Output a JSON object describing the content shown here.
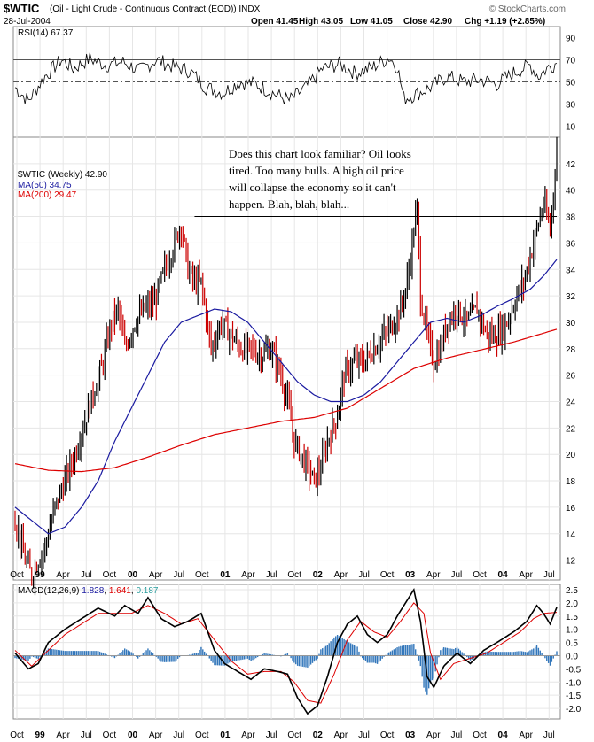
{
  "header": {
    "symbol": "$WTIC",
    "description": "(Oil - Light Crude - Continuous Contract (EOD)) INDX",
    "date": "28-Jul-2004",
    "open": "Open 41.45",
    "high": "High 43.05",
    "low": "Low 41.05",
    "close": "Close 42.90",
    "chg": "Chg +1.19 (+2.85%)",
    "watermark": "© StockCharts.com"
  },
  "annotation": [
    "Does this chart look familiar? Oil looks",
    "tired. Too many bulls. A high oil price",
    "will collapse the economy so it can't",
    "happen. Blah, blah, blah..."
  ],
  "colors": {
    "price_up": "#000000",
    "price_down": "#cc0000",
    "ma50": "#1a1aa0",
    "ma200": "#dd0000",
    "macd_signal": "#dd0000",
    "histogram": "#3377bb",
    "rsi_line": "#000000",
    "macd_value": "#1a1aa0",
    "signal_value": "#dd0000",
    "hist_value": "#2a9d9d"
  },
  "chart_data": [
    {
      "type": "line",
      "panel": "rsi",
      "legend": "RSI(14) 67.37",
      "yticks": [
        "90",
        "70",
        "50",
        "30",
        "10"
      ],
      "ylim": [
        0,
        100
      ],
      "levels": [
        70,
        50,
        30
      ],
      "series": [
        {
          "name": "RSI(14)",
          "keypoints": [
            [
              0,
              45
            ],
            [
              8,
              33
            ],
            [
              18,
              55
            ],
            [
              28,
              70
            ],
            [
              35,
              62
            ],
            [
              45,
              71
            ],
            [
              55,
              65
            ],
            [
              65,
              68
            ],
            [
              75,
              60
            ],
            [
              85,
              70
            ],
            [
              95,
              64
            ],
            [
              105,
              60
            ],
            [
              115,
              45
            ],
            [
              125,
              40
            ],
            [
              135,
              50
            ],
            [
              145,
              48
            ],
            [
              155,
              40
            ],
            [
              165,
              33
            ],
            [
              175,
              45
            ],
            [
              185,
              62
            ],
            [
              195,
              66
            ],
            [
              205,
              58
            ],
            [
              215,
              63
            ],
            [
              225,
              72
            ],
            [
              230,
              64
            ],
            [
              234,
              35
            ],
            [
              240,
              38
            ],
            [
              250,
              45
            ],
            [
              260,
              55
            ],
            [
              270,
              50
            ],
            [
              280,
              52
            ],
            [
              290,
              48
            ],
            [
              300,
              58
            ],
            [
              310,
              65
            ],
            [
              315,
              55
            ],
            [
              320,
              62
            ],
            [
              326,
              67.37
            ]
          ]
        }
      ]
    },
    {
      "type": "line",
      "panel": "price",
      "title": "$WTIC (Weekly) 42.90",
      "frequency": "Weekly",
      "x_labels": [
        "Oct",
        "99",
        "Apr",
        "Jul",
        "Oct",
        "00",
        "Apr",
        "Jul",
        "Oct",
        "01",
        "Apr",
        "Jul",
        "Oct",
        "02",
        "Apr",
        "Jul",
        "Oct",
        "03",
        "Apr",
        "Jul",
        "Oct",
        "04",
        "Apr",
        "Jul"
      ],
      "yticks": [
        "42",
        "40",
        "38",
        "36",
        "34",
        "32",
        "30",
        "28",
        "26",
        "24",
        "22",
        "20",
        "18",
        "16",
        "14",
        "12"
      ],
      "ylim": [
        10.5,
        44
      ],
      "resistance": 38,
      "series": [
        {
          "name": "$WTIC",
          "last": "42.90",
          "keypoints": [
            [
              0,
              15
            ],
            [
              6,
              12
            ],
            [
              10,
              10.8
            ],
            [
              14,
              12
            ],
            [
              18,
              13
            ],
            [
              24,
              16
            ],
            [
              30,
              18
            ],
            [
              36,
              20
            ],
            [
              42,
              22.5
            ],
            [
              48,
              25
            ],
            [
              52,
              26.5
            ],
            [
              58,
              30
            ],
            [
              62,
              31
            ],
            [
              66,
              28
            ],
            [
              72,
              30
            ],
            [
              78,
              31
            ],
            [
              84,
              31.5
            ],
            [
              90,
              34
            ],
            [
              96,
              36
            ],
            [
              100,
              37.5
            ],
            [
              104,
              34
            ],
            [
              108,
              33
            ],
            [
              112,
              33
            ],
            [
              118,
              28
            ],
            [
              124,
              30
            ],
            [
              130,
              29
            ],
            [
              136,
              28
            ],
            [
              142,
              28
            ],
            [
              148,
              27.5
            ],
            [
              154,
              28
            ],
            [
              160,
              26
            ],
            [
              164,
              24
            ],
            [
              168,
              21
            ],
            [
              172,
              20
            ],
            [
              176,
              19
            ],
            [
              180,
              18
            ],
            [
              184,
              19
            ],
            [
              188,
              21
            ],
            [
              194,
              23
            ],
            [
              198,
              26
            ],
            [
              204,
              27
            ],
            [
              210,
              27
            ],
            [
              216,
              28
            ],
            [
              222,
              29
            ],
            [
              228,
              30
            ],
            [
              232,
              31
            ],
            [
              236,
              33
            ],
            [
              240,
              37
            ],
            [
              242,
              38.5
            ],
            [
              244,
              32
            ],
            [
              248,
              29
            ],
            [
              252,
              27
            ],
            [
              256,
              28
            ],
            [
              260,
              30
            ],
            [
              266,
              31
            ],
            [
              272,
              30
            ],
            [
              278,
              31
            ],
            [
              284,
              29
            ],
            [
              290,
              29
            ],
            [
              296,
              30
            ],
            [
              302,
              32
            ],
            [
              306,
              33
            ],
            [
              310,
              35
            ],
            [
              314,
              37
            ],
            [
              318,
              39
            ],
            [
              322,
              37
            ],
            [
              326,
              42.9
            ]
          ]
        },
        {
          "name": "MA(50)",
          "legend": "MA(50) 34.75",
          "keypoints": [
            [
              0,
              16
            ],
            [
              10,
              15
            ],
            [
              20,
              14
            ],
            [
              30,
              14.5
            ],
            [
              40,
              16
            ],
            [
              50,
              18
            ],
            [
              60,
              21
            ],
            [
              70,
              23.5
            ],
            [
              80,
              26
            ],
            [
              90,
              28.5
            ],
            [
              100,
              30
            ],
            [
              110,
              30.5
            ],
            [
              120,
              31
            ],
            [
              130,
              30.8
            ],
            [
              140,
              30
            ],
            [
              150,
              28.5
            ],
            [
              160,
              27
            ],
            [
              170,
              25.5
            ],
            [
              180,
              24.5
            ],
            [
              190,
              24
            ],
            [
              200,
              24
            ],
            [
              210,
              24.5
            ],
            [
              220,
              25.5
            ],
            [
              230,
              27
            ],
            [
              240,
              28.5
            ],
            [
              250,
              30
            ],
            [
              260,
              30.3
            ],
            [
              270,
              30
            ],
            [
              280,
              30.5
            ],
            [
              290,
              31.2
            ],
            [
              300,
              31.8
            ],
            [
              310,
              32.5
            ],
            [
              318,
              33.5
            ],
            [
              326,
              34.75
            ]
          ]
        },
        {
          "name": "MA(200)",
          "legend": "MA(200) 29.47",
          "keypoints": [
            [
              0,
              19.3
            ],
            [
              20,
              18.8
            ],
            [
              40,
              18.7
            ],
            [
              60,
              19
            ],
            [
              80,
              19.8
            ],
            [
              100,
              20.7
            ],
            [
              120,
              21.5
            ],
            [
              140,
              22
            ],
            [
              160,
              22.5
            ],
            [
              180,
              22.8
            ],
            [
              200,
              23.5
            ],
            [
              220,
              25
            ],
            [
              240,
              26.5
            ],
            [
              260,
              27.3
            ],
            [
              280,
              27.9
            ],
            [
              300,
              28.5
            ],
            [
              326,
              29.47
            ]
          ]
        }
      ]
    },
    {
      "type": "line",
      "panel": "macd",
      "legend": "MACD(12,26,9)",
      "macd_value": "1.828",
      "signal_value": "1.641",
      "hist_value": "0.187",
      "yticks": [
        "2.5",
        "2.0",
        "1.5",
        "1.0",
        "0.5",
        "0.0",
        "-0.5",
        "-1.0",
        "-1.5",
        "-2.0"
      ],
      "ylim": [
        -2.4,
        2.7
      ],
      "series": [
        {
          "name": "MACD",
          "keypoints": [
            [
              0,
              0.1
            ],
            [
              8,
              -0.5
            ],
            [
              14,
              -0.3
            ],
            [
              20,
              0.5
            ],
            [
              30,
              1.0
            ],
            [
              40,
              1.4
            ],
            [
              50,
              1.8
            ],
            [
              60,
              1.5
            ],
            [
              66,
              1.9
            ],
            [
              74,
              1.6
            ],
            [
              80,
              2.2
            ],
            [
              88,
              1.4
            ],
            [
              96,
              1.1
            ],
            [
              104,
              1.3
            ],
            [
              112,
              1.6
            ],
            [
              120,
              0.2
            ],
            [
              126,
              -0.3
            ],
            [
              134,
              -0.6
            ],
            [
              142,
              -0.9
            ],
            [
              150,
              -0.5
            ],
            [
              158,
              -0.6
            ],
            [
              164,
              -0.7
            ],
            [
              170,
              -1.6
            ],
            [
              176,
              -2.2
            ],
            [
              182,
              -1.9
            ],
            [
              188,
              -0.8
            ],
            [
              194,
              0.5
            ],
            [
              200,
              1.2
            ],
            [
              206,
              1.5
            ],
            [
              212,
              0.8
            ],
            [
              218,
              0.5
            ],
            [
              224,
              0.8
            ],
            [
              230,
              1.5
            ],
            [
              236,
              2.1
            ],
            [
              240,
              2.5
            ],
            [
              244,
              1.3
            ],
            [
              248,
              -0.8
            ],
            [
              252,
              -1.2
            ],
            [
              258,
              -0.4
            ],
            [
              266,
              0.1
            ],
            [
              274,
              -0.3
            ],
            [
              282,
              0.2
            ],
            [
              290,
              0.5
            ],
            [
              300,
              0.9
            ],
            [
              308,
              1.3
            ],
            [
              314,
              1.9
            ],
            [
              318,
              1.6
            ],
            [
              322,
              1.2
            ],
            [
              326,
              1.828
            ]
          ]
        },
        {
          "name": "Signal",
          "keypoints": [
            [
              0,
              0.2
            ],
            [
              10,
              -0.4
            ],
            [
              20,
              0.2
            ],
            [
              30,
              0.8
            ],
            [
              40,
              1.2
            ],
            [
              50,
              1.6
            ],
            [
              60,
              1.6
            ],
            [
              70,
              1.6
            ],
            [
              80,
              1.9
            ],
            [
              90,
              1.6
            ],
            [
              100,
              1.2
            ],
            [
              110,
              1.4
            ],
            [
              120,
              0.6
            ],
            [
              130,
              -0.2
            ],
            [
              140,
              -0.7
            ],
            [
              150,
              -0.6
            ],
            [
              160,
              -0.6
            ],
            [
              168,
              -1.0
            ],
            [
              176,
              -1.7
            ],
            [
              184,
              -1.8
            ],
            [
              192,
              -0.7
            ],
            [
              200,
              0.6
            ],
            [
              208,
              1.3
            ],
            [
              216,
              0.9
            ],
            [
              224,
              0.7
            ],
            [
              232,
              1.3
            ],
            [
              240,
              2.0
            ],
            [
              246,
              1.6
            ],
            [
              250,
              0.1
            ],
            [
              256,
              -0.9
            ],
            [
              264,
              -0.3
            ],
            [
              274,
              -0.1
            ],
            [
              284,
              0.1
            ],
            [
              294,
              0.5
            ],
            [
              304,
              0.9
            ],
            [
              312,
              1.4
            ],
            [
              318,
              1.6
            ],
            [
              326,
              1.641
            ]
          ]
        }
      ]
    }
  ]
}
